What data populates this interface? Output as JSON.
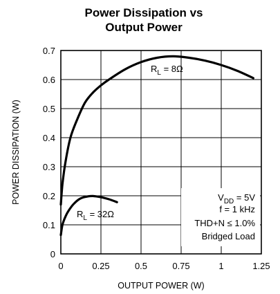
{
  "chart_data": {
    "type": "line",
    "title_line1": "Power Dissipation vs",
    "title_line2": "Output Power",
    "xlabel": "OUTPUT POWER (W)",
    "ylabel": "POWER DISSIPATION (W)",
    "xlim": [
      0,
      1.25
    ],
    "ylim": [
      0,
      0.7
    ],
    "x_ticks": [
      "0",
      "0.25",
      "0.5",
      "0.75",
      "1",
      "1.25"
    ],
    "x_tick_values": [
      0,
      0.25,
      0.5,
      0.75,
      1,
      1.25
    ],
    "y_ticks": [
      "0",
      "0.1",
      "0.2",
      "0.3",
      "0.4",
      "0.5",
      "0.6",
      "0.7"
    ],
    "y_tick_values": [
      0,
      0.1,
      0.2,
      0.3,
      0.4,
      0.5,
      0.6,
      0.7
    ],
    "grid": true,
    "series": [
      {
        "label_prefix": "R",
        "label_sub": "L",
        "label_suffix": " = 8Ω",
        "x": [
          0.0,
          0.01,
          0.03,
          0.06,
          0.1,
          0.15,
          0.2,
          0.25,
          0.3,
          0.4,
          0.5,
          0.6,
          0.7,
          0.8,
          0.9,
          1.0,
          1.1,
          1.2
        ],
        "y": [
          0.17,
          0.24,
          0.32,
          0.4,
          0.46,
          0.52,
          0.555,
          0.58,
          0.6,
          0.635,
          0.66,
          0.675,
          0.68,
          0.675,
          0.665,
          0.65,
          0.63,
          0.605
        ]
      },
      {
        "label_prefix": "R",
        "label_sub": "L",
        "label_suffix": " = 32Ω",
        "x": [
          0.0,
          0.01,
          0.03,
          0.05,
          0.08,
          0.12,
          0.16,
          0.2,
          0.25,
          0.3,
          0.35
        ],
        "y": [
          0.065,
          0.1,
          0.13,
          0.15,
          0.172,
          0.19,
          0.197,
          0.199,
          0.195,
          0.188,
          0.178
        ]
      }
    ],
    "annotations": {
      "vdd_prefix": "V",
      "vdd_sub": "DD",
      "vdd_suffix": " = 5V",
      "freq": "f = 1 kHz",
      "thd": "THD+N ≤ 1.0%",
      "load": "Bridged Load"
    }
  }
}
